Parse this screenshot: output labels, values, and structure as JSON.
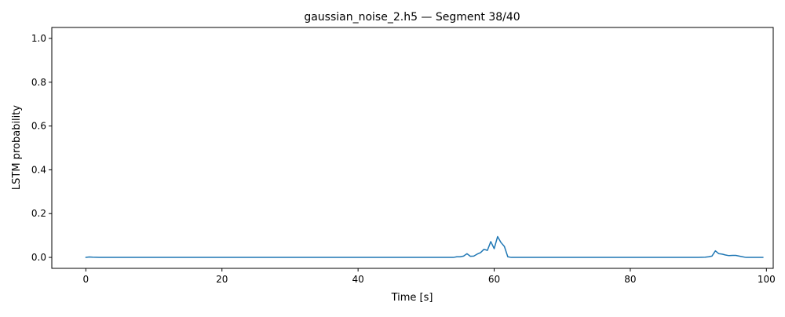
{
  "chart_data": {
    "type": "line",
    "title": "gaussian_noise_2.h5 — Segment 38/40",
    "xlabel": "Time [s]",
    "ylabel": "LSTM probability",
    "xlim": [
      -5,
      101
    ],
    "ylim": [
      -0.05,
      1.05
    ],
    "xticks": [
      0,
      20,
      40,
      60,
      80,
      100
    ],
    "yticks": [
      0.0,
      0.2,
      0.4,
      0.6,
      0.8,
      1.0
    ],
    "xtick_labels": [
      "0",
      "20",
      "40",
      "60",
      "80",
      "100"
    ],
    "ytick_labels": [
      "0.0",
      "0.2",
      "0.4",
      "0.6",
      "0.8",
      "1.0"
    ],
    "grid": false,
    "series": [
      {
        "color": "#1f77b4",
        "x": [
          0,
          0.5,
          1,
          2,
          5,
          10,
          20,
          30,
          40,
          50,
          53.5,
          54,
          54.5,
          55,
          55.5,
          56,
          56.5,
          57,
          57.5,
          58,
          58.5,
          59,
          59.5,
          60,
          60.5,
          61,
          61.5,
          62,
          62.5,
          63,
          65,
          70,
          80,
          90,
          91,
          91.5,
          92,
          92.5,
          93,
          93.5,
          94,
          94.5,
          95,
          95.5,
          96,
          96.5,
          97,
          98,
          99,
          99.5
        ],
        "y": [
          0.0,
          0.002,
          0.001,
          0.0,
          0.0,
          0.0,
          0.0,
          0.0,
          0.0,
          0.0,
          0.0,
          0.0,
          0.003,
          0.003,
          0.006,
          0.017,
          0.005,
          0.006,
          0.015,
          0.022,
          0.037,
          0.032,
          0.072,
          0.04,
          0.095,
          0.068,
          0.05,
          0.003,
          0.0,
          0.0,
          0.0,
          0.0,
          0.0,
          0.0,
          0.001,
          0.003,
          0.006,
          0.03,
          0.017,
          0.015,
          0.011,
          0.008,
          0.009,
          0.009,
          0.006,
          0.003,
          0.0,
          0.0,
          0.0,
          0.0
        ]
      }
    ]
  }
}
